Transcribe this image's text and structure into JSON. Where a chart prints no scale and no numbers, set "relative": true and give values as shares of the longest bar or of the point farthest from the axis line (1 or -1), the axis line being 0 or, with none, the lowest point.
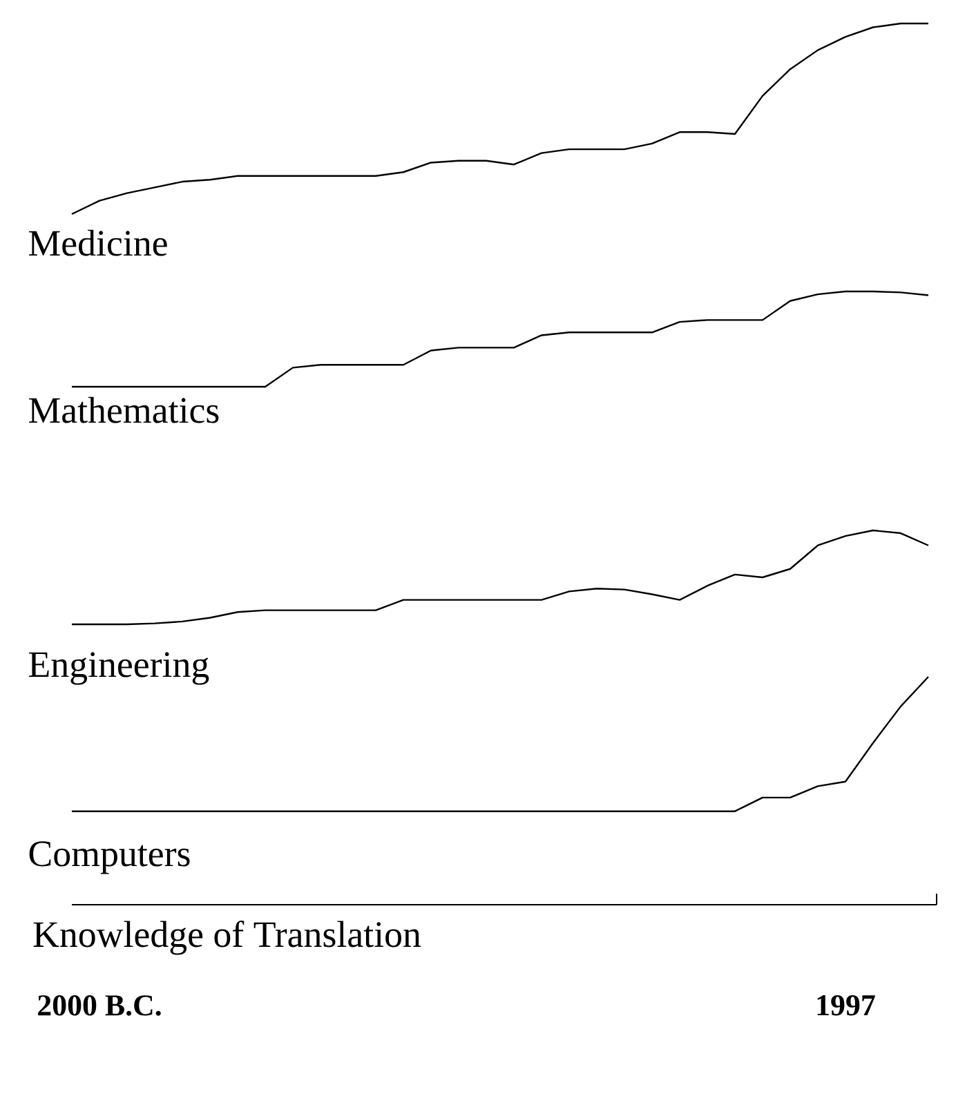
{
  "chart_data": [
    {
      "type": "line",
      "relative": true,
      "tick_labels": false,
      "title": "Medicine",
      "categories": [
        null,
        null,
        null,
        null,
        null,
        null,
        null,
        null,
        null,
        null,
        null,
        null,
        null,
        null,
        null,
        null,
        null,
        null,
        null,
        null,
        null,
        null,
        null,
        null,
        null,
        null,
        null,
        null,
        null,
        null,
        null,
        null
      ],
      "series": [
        {
          "color": "#000000",
          "values": [
            0,
            0.07,
            0.11,
            0.14,
            0.17,
            0.18,
            0.2,
            0.2,
            0.2,
            0.2,
            0.2,
            0.2,
            0.22,
            0.27,
            0.28,
            0.28,
            0.26,
            0.32,
            0.34,
            0.34,
            0.34,
            0.37,
            0.43,
            0.43,
            0.42,
            0.62,
            0.76,
            0.86,
            0.93,
            0.98,
            1,
            1
          ]
        }
      ]
    },
    {
      "type": "line",
      "relative": true,
      "tick_labels": false,
      "title": "Mathematics",
      "categories": [
        null,
        null,
        null,
        null,
        null,
        null,
        null,
        null,
        null,
        null,
        null,
        null,
        null,
        null,
        null,
        null,
        null,
        null,
        null,
        null,
        null,
        null,
        null,
        null,
        null,
        null,
        null,
        null,
        null,
        null,
        null,
        null
      ],
      "series": [
        {
          "color": "#000000",
          "values": [
            0,
            0,
            0,
            0,
            0,
            0,
            0,
            0,
            0.2,
            0.23,
            0.23,
            0.23,
            0.23,
            0.38,
            0.41,
            0.41,
            0.41,
            0.54,
            0.57,
            0.57,
            0.57,
            0.57,
            0.68,
            0.7,
            0.7,
            0.7,
            0.9,
            0.97,
            1,
            1,
            0.99,
            0.96
          ]
        }
      ]
    },
    {
      "type": "line",
      "relative": true,
      "tick_labels": false,
      "title": "Engineering",
      "categories": [
        null,
        null,
        null,
        null,
        null,
        null,
        null,
        null,
        null,
        null,
        null,
        null,
        null,
        null,
        null,
        null,
        null,
        null,
        null,
        null,
        null,
        null,
        null,
        null,
        null,
        null,
        null,
        null,
        null,
        null,
        null,
        null
      ],
      "series": [
        {
          "color": "#000000",
          "values": [
            0,
            0,
            0,
            0.01,
            0.03,
            0.07,
            0.13,
            0.15,
            0.15,
            0.15,
            0.15,
            0.15,
            0.26,
            0.26,
            0.26,
            0.26,
            0.26,
            0.26,
            0.35,
            0.38,
            0.37,
            0.32,
            0.26,
            0.41,
            0.53,
            0.5,
            0.59,
            0.84,
            0.94,
            1,
            0.97,
            0.84
          ]
        }
      ]
    },
    {
      "type": "line",
      "relative": true,
      "title": "Computers",
      "xlabel": "Knowledge of Translation",
      "categories": [
        null,
        "2000 B.C.",
        null,
        null,
        null,
        null,
        null,
        null,
        null,
        null,
        null,
        null,
        null,
        null,
        null,
        null,
        null,
        null,
        null,
        null,
        null,
        null,
        null,
        null,
        null,
        null,
        null,
        null,
        "1997",
        null,
        null,
        null
      ],
      "series": [
        {
          "color": "#000000",
          "values": [
            0.41,
            0.41,
            0.41,
            0.41,
            0.41,
            0.41,
            0.41,
            0.41,
            0.41,
            0.41,
            0.41,
            0.41,
            0.41,
            0.41,
            0.41,
            0.41,
            0.41,
            0.41,
            0.41,
            0.41,
            0.41,
            0.41,
            0.41,
            0.41,
            0.41,
            0.47,
            0.47,
            0.52,
            0.54,
            0.71,
            0.87,
            1
          ]
        }
      ]
    }
  ]
}
